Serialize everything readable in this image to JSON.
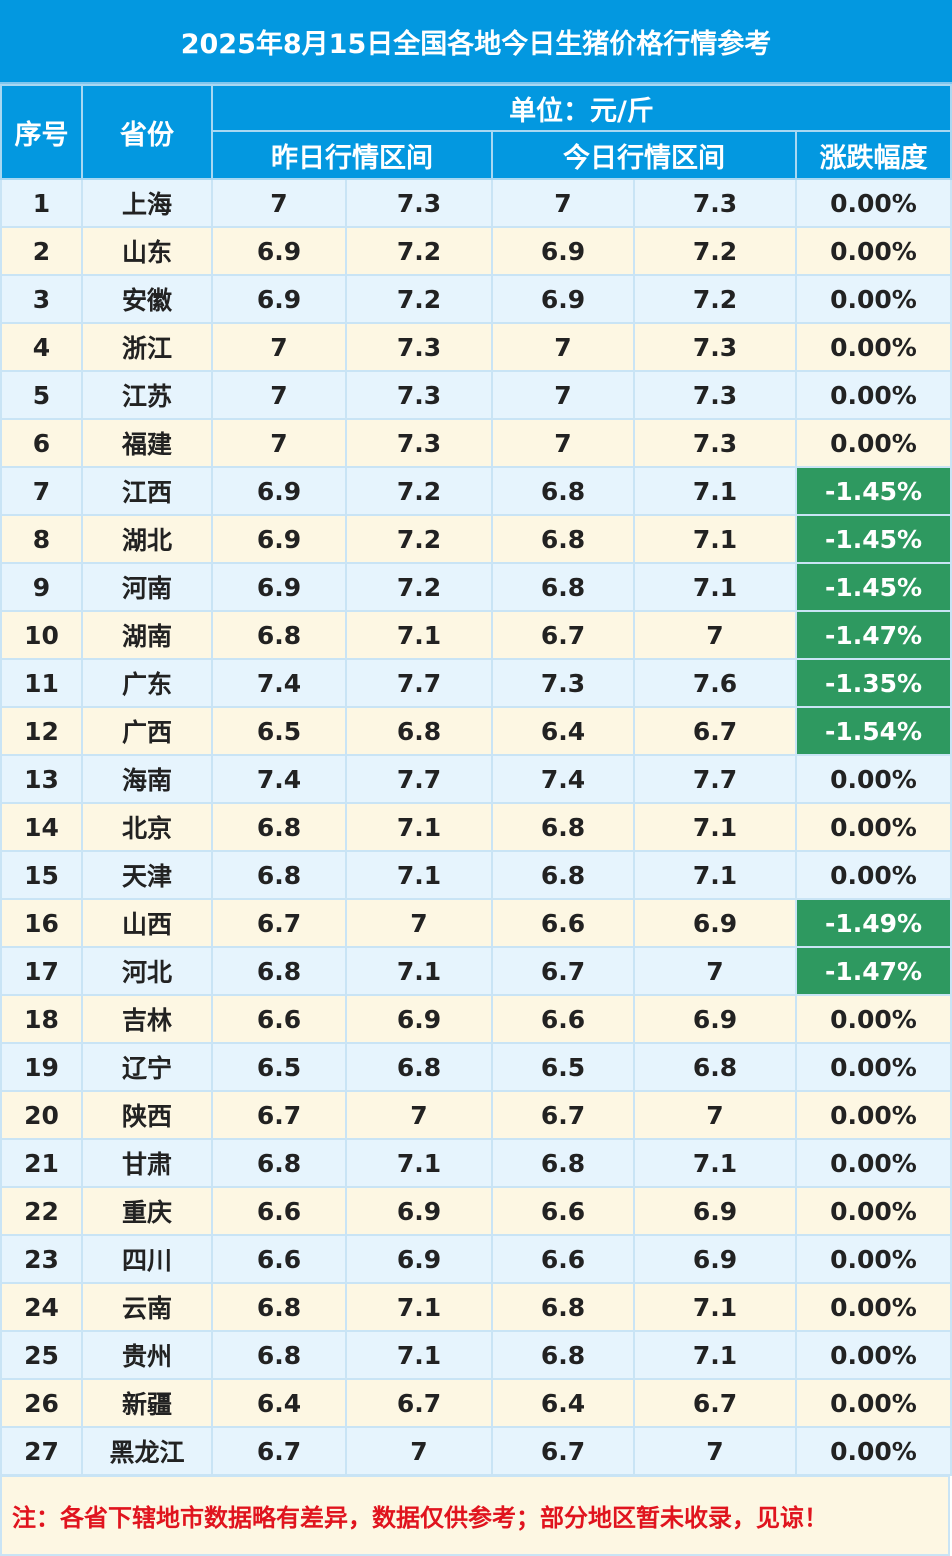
{
  "title": "2025年8月15日全国各地今日生猪价格行情参考",
  "headers": {
    "index": "序号",
    "province": "省份",
    "unit": "单位：元/斤",
    "yesterday": "昨日行情区间",
    "today": "今日行情区间",
    "change": "涨跌幅度"
  },
  "colors": {
    "header": "#0398e0",
    "down": "#2e9960",
    "note": "#e0141e"
  },
  "rows": [
    {
      "no": "1",
      "province": "上海",
      "y_low": "7",
      "y_high": "7.3",
      "t_low": "7",
      "t_high": "7.3",
      "change": "0.00%",
      "down": false
    },
    {
      "no": "2",
      "province": "山东",
      "y_low": "6.9",
      "y_high": "7.2",
      "t_low": "6.9",
      "t_high": "7.2",
      "change": "0.00%",
      "down": false
    },
    {
      "no": "3",
      "province": "安徽",
      "y_low": "6.9",
      "y_high": "7.2",
      "t_low": "6.9",
      "t_high": "7.2",
      "change": "0.00%",
      "down": false
    },
    {
      "no": "4",
      "province": "浙江",
      "y_low": "7",
      "y_high": "7.3",
      "t_low": "7",
      "t_high": "7.3",
      "change": "0.00%",
      "down": false
    },
    {
      "no": "5",
      "province": "江苏",
      "y_low": "7",
      "y_high": "7.3",
      "t_low": "7",
      "t_high": "7.3",
      "change": "0.00%",
      "down": false
    },
    {
      "no": "6",
      "province": "福建",
      "y_low": "7",
      "y_high": "7.3",
      "t_low": "7",
      "t_high": "7.3",
      "change": "0.00%",
      "down": false
    },
    {
      "no": "7",
      "province": "江西",
      "y_low": "6.9",
      "y_high": "7.2",
      "t_low": "6.8",
      "t_high": "7.1",
      "change": "-1.45%",
      "down": true
    },
    {
      "no": "8",
      "province": "湖北",
      "y_low": "6.9",
      "y_high": "7.2",
      "t_low": "6.8",
      "t_high": "7.1",
      "change": "-1.45%",
      "down": true
    },
    {
      "no": "9",
      "province": "河南",
      "y_low": "6.9",
      "y_high": "7.2",
      "t_low": "6.8",
      "t_high": "7.1",
      "change": "-1.45%",
      "down": true
    },
    {
      "no": "10",
      "province": "湖南",
      "y_low": "6.8",
      "y_high": "7.1",
      "t_low": "6.7",
      "t_high": "7",
      "change": "-1.47%",
      "down": true
    },
    {
      "no": "11",
      "province": "广东",
      "y_low": "7.4",
      "y_high": "7.7",
      "t_low": "7.3",
      "t_high": "7.6",
      "change": "-1.35%",
      "down": true
    },
    {
      "no": "12",
      "province": "广西",
      "y_low": "6.5",
      "y_high": "6.8",
      "t_low": "6.4",
      "t_high": "6.7",
      "change": "-1.54%",
      "down": true
    },
    {
      "no": "13",
      "province": "海南",
      "y_low": "7.4",
      "y_high": "7.7",
      "t_low": "7.4",
      "t_high": "7.7",
      "change": "0.00%",
      "down": false
    },
    {
      "no": "14",
      "province": "北京",
      "y_low": "6.8",
      "y_high": "7.1",
      "t_low": "6.8",
      "t_high": "7.1",
      "change": "0.00%",
      "down": false
    },
    {
      "no": "15",
      "province": "天津",
      "y_low": "6.8",
      "y_high": "7.1",
      "t_low": "6.8",
      "t_high": "7.1",
      "change": "0.00%",
      "down": false
    },
    {
      "no": "16",
      "province": "山西",
      "y_low": "6.7",
      "y_high": "7",
      "t_low": "6.6",
      "t_high": "6.9",
      "change": "-1.49%",
      "down": true
    },
    {
      "no": "17",
      "province": "河北",
      "y_low": "6.8",
      "y_high": "7.1",
      "t_low": "6.7",
      "t_high": "7",
      "change": "-1.47%",
      "down": true
    },
    {
      "no": "18",
      "province": "吉林",
      "y_low": "6.6",
      "y_high": "6.9",
      "t_low": "6.6",
      "t_high": "6.9",
      "change": "0.00%",
      "down": false
    },
    {
      "no": "19",
      "province": "辽宁",
      "y_low": "6.5",
      "y_high": "6.8",
      "t_low": "6.5",
      "t_high": "6.8",
      "change": "0.00%",
      "down": false
    },
    {
      "no": "20",
      "province": "陕西",
      "y_low": "6.7",
      "y_high": "7",
      "t_low": "6.7",
      "t_high": "7",
      "change": "0.00%",
      "down": false
    },
    {
      "no": "21",
      "province": "甘肃",
      "y_low": "6.8",
      "y_high": "7.1",
      "t_low": "6.8",
      "t_high": "7.1",
      "change": "0.00%",
      "down": false
    },
    {
      "no": "22",
      "province": "重庆",
      "y_low": "6.6",
      "y_high": "6.9",
      "t_low": "6.6",
      "t_high": "6.9",
      "change": "0.00%",
      "down": false
    },
    {
      "no": "23",
      "province": "四川",
      "y_low": "6.6",
      "y_high": "6.9",
      "t_low": "6.6",
      "t_high": "6.9",
      "change": "0.00%",
      "down": false
    },
    {
      "no": "24",
      "province": "云南",
      "y_low": "6.8",
      "y_high": "7.1",
      "t_low": "6.8",
      "t_high": "7.1",
      "change": "0.00%",
      "down": false
    },
    {
      "no": "25",
      "province": "贵州",
      "y_low": "6.8",
      "y_high": "7.1",
      "t_low": "6.8",
      "t_high": "7.1",
      "change": "0.00%",
      "down": false
    },
    {
      "no": "26",
      "province": "新疆",
      "y_low": "6.4",
      "y_high": "6.7",
      "t_low": "6.4",
      "t_high": "6.7",
      "change": "0.00%",
      "down": false
    },
    {
      "no": "27",
      "province": "黑龙江",
      "y_low": "6.7",
      "y_high": "7",
      "t_low": "6.7",
      "t_high": "7",
      "change": "0.00%",
      "down": false
    }
  ],
  "note": "注：各省下辖地市数据略有差异，数据仅供参考；部分地区暂未收录，见谅！"
}
